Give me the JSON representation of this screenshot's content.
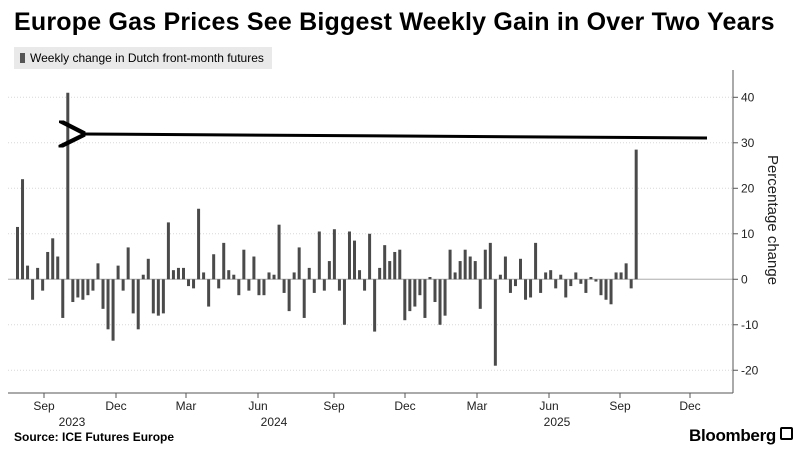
{
  "title": "Europe Gas Prices See Biggest Weekly Gain in Over Two Years",
  "source": "Source: ICE Futures Europe",
  "brand": "Bloomberg",
  "chart_data": {
    "type": "bar",
    "title": "Europe Gas Prices See Biggest Weekly Gain in Over Two Years",
    "legend": "Weekly change in Dutch front-month futures",
    "ylabel": "Percentage change",
    "xlabel": "",
    "ylim": [
      -25,
      46
    ],
    "yticks": [
      40,
      30,
      20,
      10,
      0,
      -10,
      -20
    ],
    "month_ticks": [
      "Sep",
      "Dec",
      "Mar",
      "Jun",
      "Sep",
      "Dec",
      "Mar",
      "Jun",
      "Sep",
      "Dec"
    ],
    "year_labels": [
      "2023",
      "2024",
      "2025"
    ],
    "annotation": "Arrow pointing from the latest weekly gain back to the Oct 2023 spike",
    "values": [
      11.5,
      22,
      3,
      -4.5,
      2.5,
      -2.5,
      6,
      9,
      5,
      -8.5,
      41,
      -5,
      -4,
      -4.5,
      -3.5,
      -2.5,
      3.5,
      -6.5,
      -11,
      -13.5,
      3,
      -2.5,
      7,
      -7.5,
      -11,
      1,
      4.5,
      -7.5,
      -8,
      -7.5,
      12.5,
      2,
      2.5,
      2.5,
      -1.5,
      -2,
      15.5,
      1.5,
      -6,
      5.5,
      -2,
      8,
      2,
      1,
      -3.5,
      6.5,
      -2.5,
      5,
      -3.5,
      -3.5,
      1.5,
      1,
      12,
      -3,
      -7,
      1.5,
      7,
      -8.5,
      2.5,
      -3,
      10.5,
      -2.5,
      4,
      11,
      -2.5,
      -10,
      10.5,
      8.5,
      2,
      -2.5,
      10,
      -11.5,
      2.5,
      7.5,
      4,
      6,
      6.5,
      -9,
      -7,
      -6,
      -3.5,
      -8.5,
      0.5,
      -5,
      -10,
      -8,
      6.5,
      1.5,
      4,
      6.5,
      5,
      4,
      -6.5,
      6.5,
      8,
      -19,
      1,
      5,
      -3,
      -1.5,
      4.5,
      -4.5,
      -4,
      8,
      -3,
      1.5,
      2,
      -2,
      1,
      -4,
      -1.5,
      1.5,
      -1,
      -3,
      0.5,
      -0.5,
      -3.5,
      -4.5,
      -5.5,
      1.5,
      1.5,
      3.5,
      -2,
      28.5
    ]
  }
}
